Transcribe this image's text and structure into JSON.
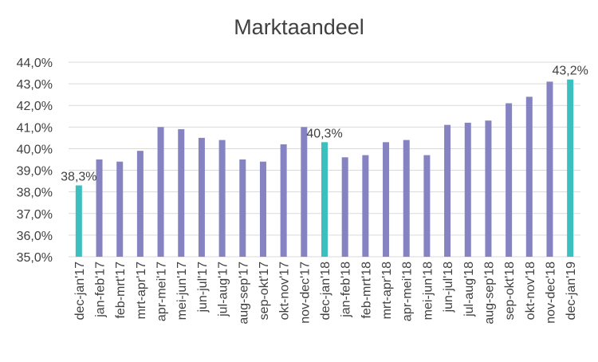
{
  "chart_data": {
    "type": "bar",
    "title": "Marktaandeel",
    "xlabel": "",
    "ylabel": "",
    "ylim": [
      35.0,
      44.0
    ],
    "ytick_step": 1.0,
    "y_tick_labels": [
      "35,0%",
      "36,0%",
      "37,0%",
      "38,0%",
      "39,0%",
      "40,0%",
      "41,0%",
      "42,0%",
      "43,0%",
      "44,0%"
    ],
    "grid": true,
    "legend": "none",
    "categories": [
      "dec-jan'17",
      "jan-feb'17",
      "feb-mrt'17",
      "mrt-apr'17",
      "apr-mei'17",
      "mei-jun'17",
      "jun-jul'17",
      "jul-aug'17",
      "aug-sep'17",
      "sep-okt'17",
      "okt-nov'17",
      "nov-dec'17",
      "dec-jan'18",
      "jan-feb'18",
      "feb-mrt'18",
      "mrt-apr'18",
      "apr-mei'18",
      "mei-jun'18",
      "jun-jul'18",
      "jul-aug'18",
      "aug-sep'18",
      "sep-okt'18",
      "okt-nov'18",
      "nov-dec'18",
      "dec-jan'19"
    ],
    "values": [
      38.3,
      39.5,
      39.4,
      39.9,
      41.0,
      40.9,
      40.5,
      40.4,
      39.5,
      39.4,
      40.2,
      41.0,
      40.3,
      39.6,
      39.7,
      40.3,
      40.4,
      39.7,
      41.1,
      41.2,
      41.3,
      42.1,
      42.4,
      43.1,
      43.2
    ],
    "colors": {
      "default": "#8583c1",
      "highlight": "#3bbfbf",
      "grid": "#d9d9d9",
      "text": "#404040"
    },
    "highlighted_indices": [
      0,
      12,
      24
    ],
    "data_labels": [
      {
        "index": 0,
        "text": "38,3%"
      },
      {
        "index": 12,
        "text": "40,3%"
      },
      {
        "index": 24,
        "text": "43,2%"
      }
    ]
  }
}
